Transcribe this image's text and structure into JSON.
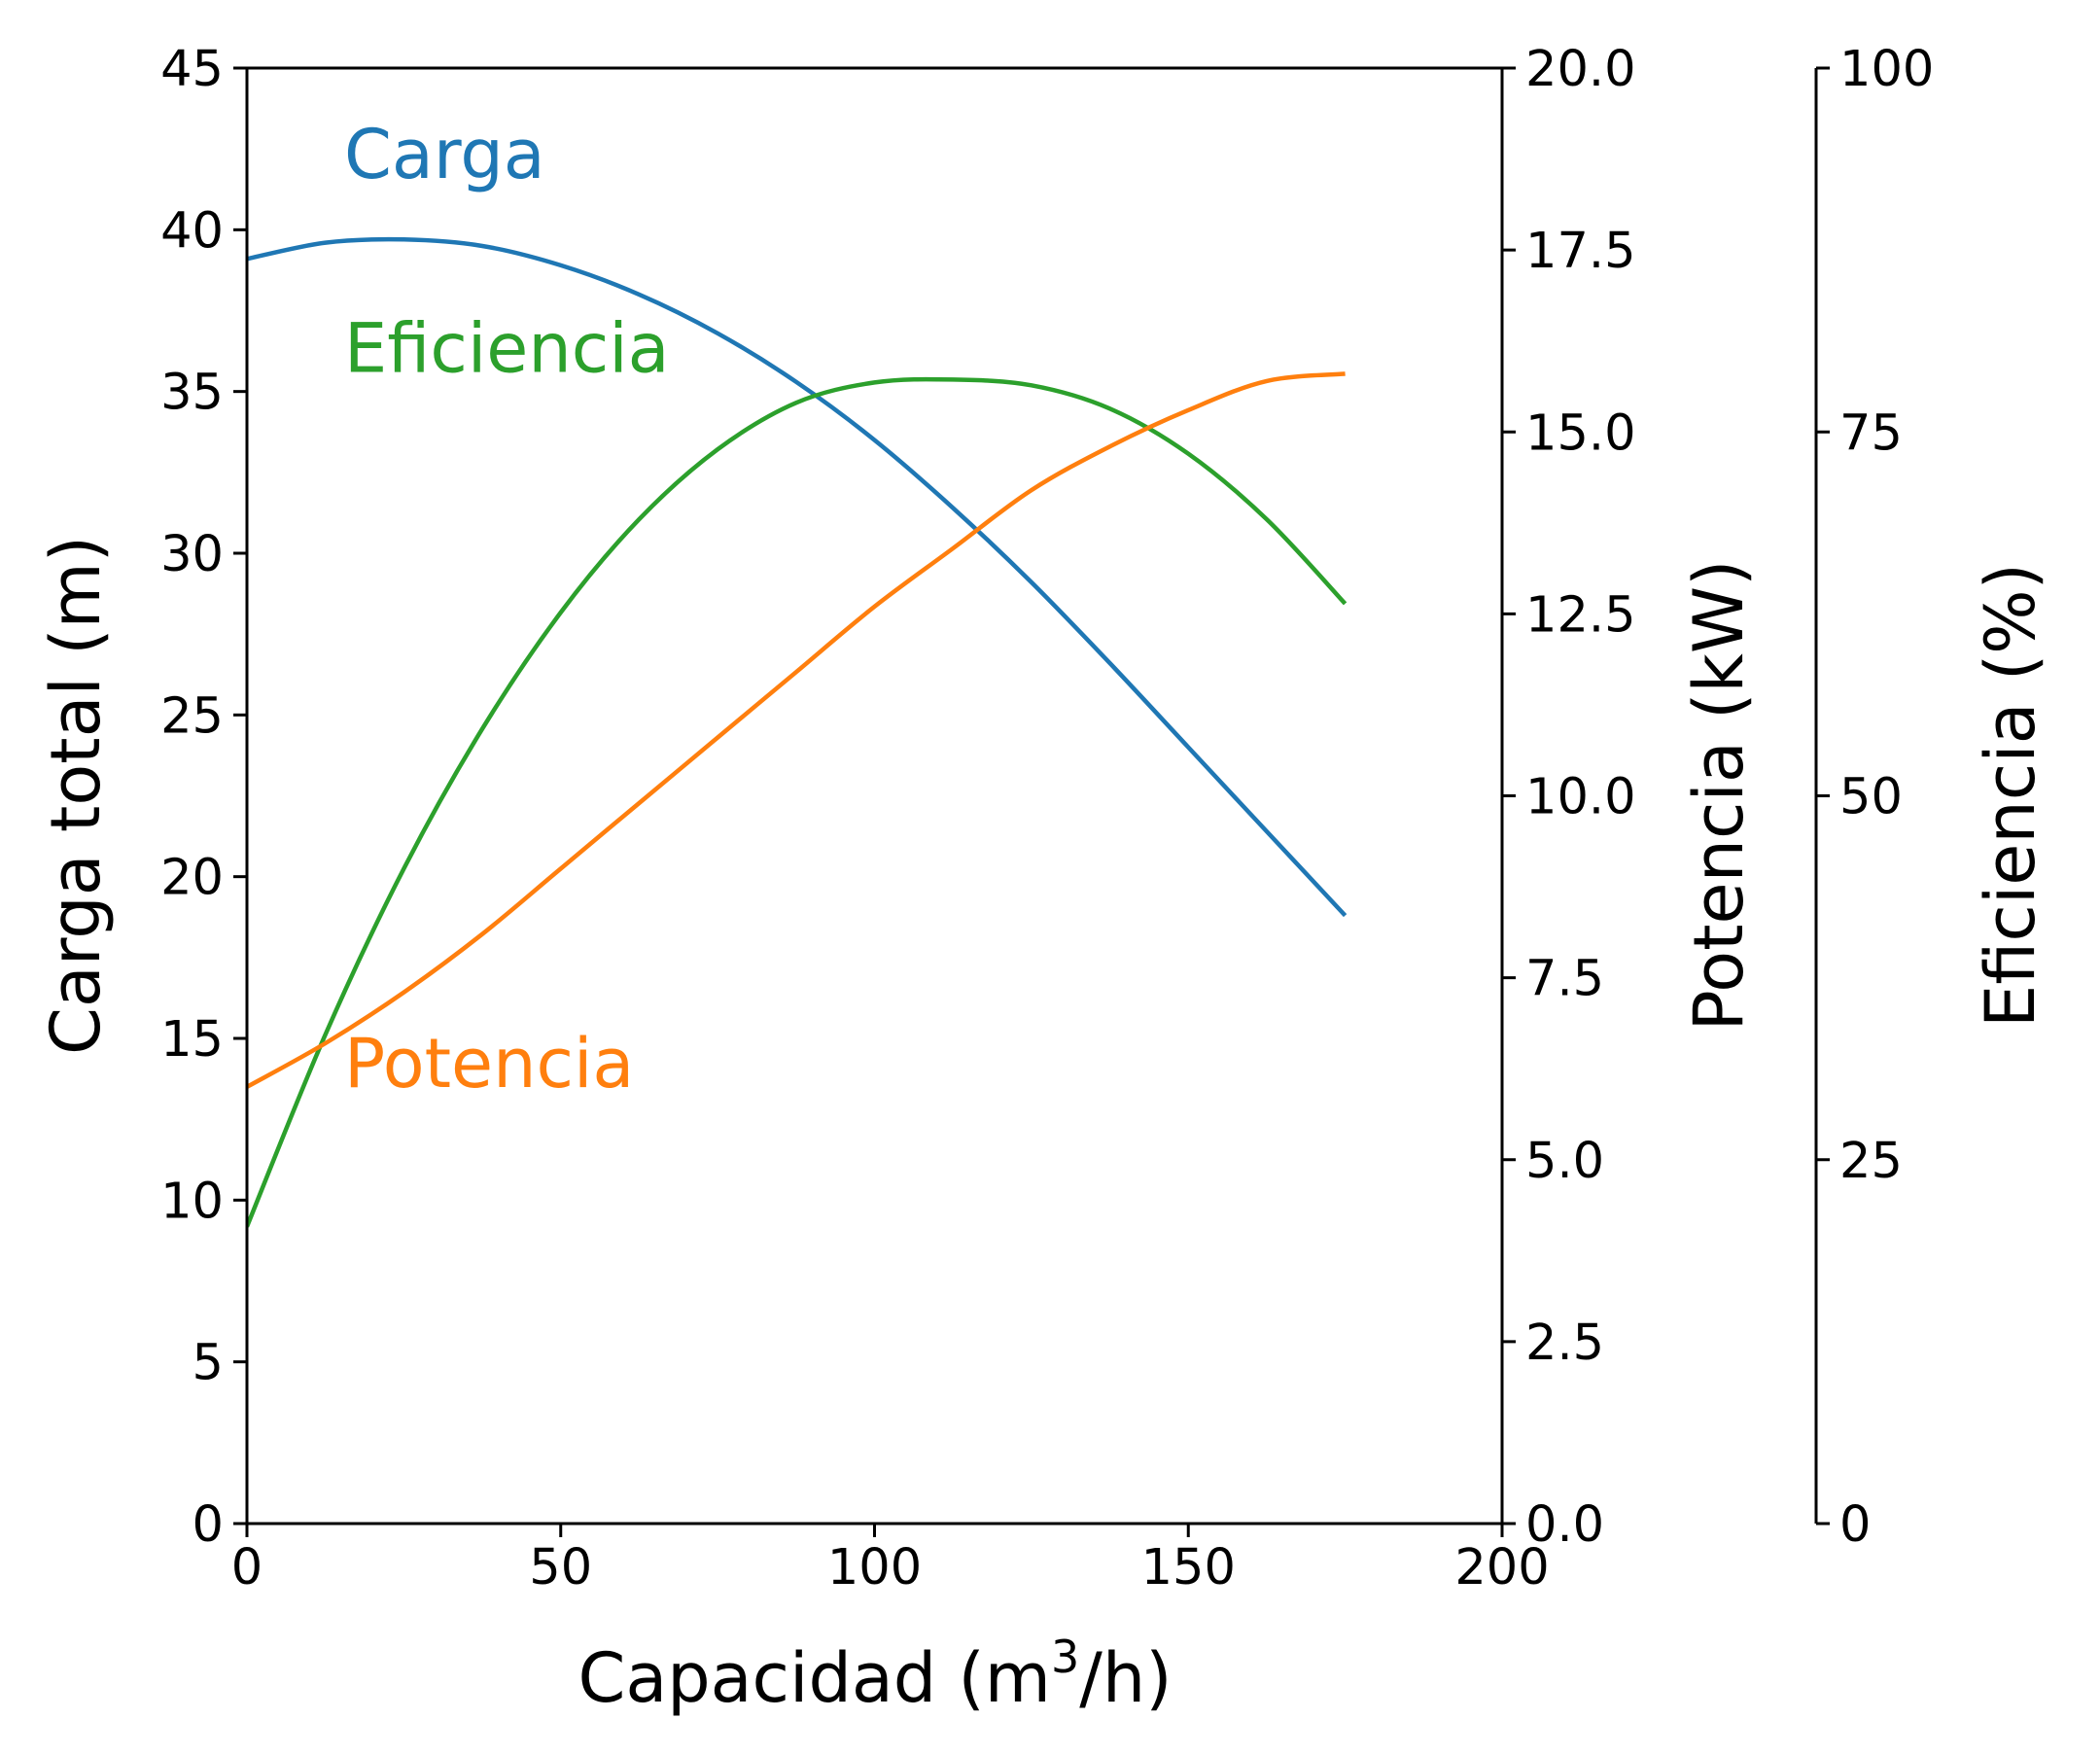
{
  "chart_data": {
    "type": "line",
    "title": "",
    "xlabel": "Capacidad (m3/h)",
    "xlabel_parts": {
      "main": "Capacidad (m",
      "sup": "3",
      "end": "/h)"
    },
    "xlim": [
      0,
      200
    ],
    "xticks": [
      "0",
      "50",
      "100",
      "150",
      "200"
    ],
    "axes": {
      "head": {
        "label": "Carga total (m)",
        "ylim": [
          0,
          45
        ],
        "ticks": [
          "0",
          "5",
          "10",
          "15",
          "20",
          "25",
          "30",
          "35",
          "40",
          "45"
        ]
      },
      "power": {
        "label": "Potencia (kW)",
        "ylim": [
          0,
          20
        ],
        "ticks": [
          "0.0",
          "2.5",
          "5.0",
          "7.5",
          "10.0",
          "12.5",
          "15.0",
          "17.5",
          "20.0"
        ]
      },
      "efficiency": {
        "label": "Eficiencia (%)",
        "ylim": [
          0,
          100
        ],
        "ticks": [
          "0",
          "25",
          "50",
          "75",
          "100"
        ]
      }
    },
    "series": [
      {
        "name": "Carga",
        "axis": "head",
        "color": "#1f77b4",
        "x": [
          0,
          12.5,
          25,
          37.5,
          50,
          62.5,
          75,
          87.5,
          100,
          112.5,
          125,
          137.5,
          150,
          162.5,
          175
        ],
        "y": [
          39.1,
          39.6,
          39.7,
          39.5,
          38.9,
          38.0,
          36.8,
          35.3,
          33.5,
          31.4,
          29.1,
          26.6,
          24.0,
          21.4,
          18.8
        ],
        "label_at": {
          "x": 15.5,
          "y": 41.6
        }
      },
      {
        "name": "Eficiencia",
        "axis": "efficiency",
        "color": "#2ca02c",
        "x": [
          0,
          12.5,
          25,
          37.5,
          50,
          62.5,
          75,
          87.5,
          100,
          112.5,
          125,
          137.5,
          150,
          162.5,
          175
        ],
        "y": [
          20.4,
          33.6,
          45.0,
          54.6,
          62.6,
          69.0,
          73.8,
          77.0,
          78.4,
          78.6,
          78.2,
          76.6,
          73.5,
          69.0,
          63.2
        ],
        "label_at": {
          "x": 15.5,
          "y": 35.6
        }
      },
      {
        "name": "Potencia",
        "axis": "power",
        "color": "#ff7f0e",
        "x": [
          0,
          12.5,
          25,
          37.5,
          50,
          62.5,
          75,
          87.5,
          100,
          112.5,
          125,
          137.5,
          150,
          162.5,
          175
        ],
        "y": [
          6.0,
          6.6,
          7.3,
          8.1,
          9.0,
          9.9,
          10.8,
          11.7,
          12.6,
          13.4,
          14.2,
          14.8,
          15.3,
          15.7,
          15.8
        ],
        "label_at": {
          "x": 15.5,
          "y": 13.5
        }
      }
    ]
  }
}
